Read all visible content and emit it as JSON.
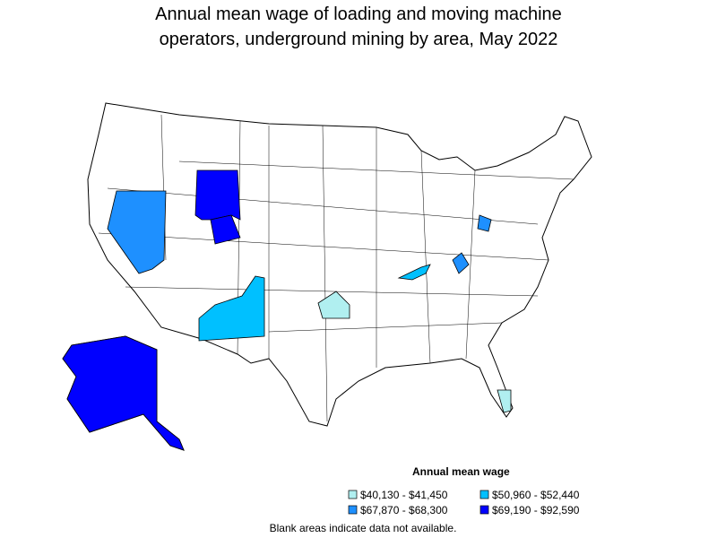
{
  "title": [
    "Annual mean wage of loading and moving machine",
    "operators, underground mining by area, May 2022"
  ],
  "legend": {
    "title": "Annual mean wage",
    "items": [
      {
        "label": "$40,130 - $41,450",
        "color": "#b0eff0"
      },
      {
        "label": "$50,960 - $52,440",
        "color": "#00c0ff"
      },
      {
        "label": "$67,870 - $68,300",
        "color": "#1e90ff"
      },
      {
        "label": "$69,190 - $92,590",
        "color": "#0000ff"
      }
    ]
  },
  "note": "Blank areas indicate data not available."
}
